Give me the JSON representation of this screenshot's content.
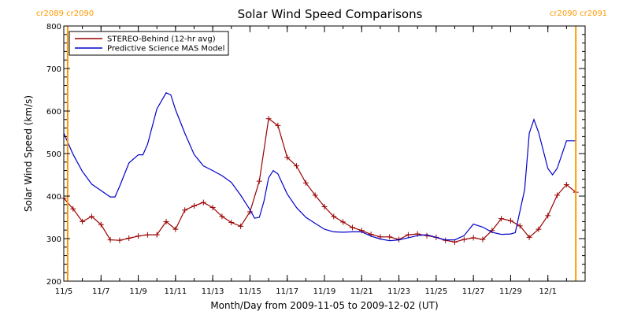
{
  "chart_data": {
    "type": "line",
    "title": "Solar Wind Speed Comparisons",
    "xlabel": "Month/Day from 2009-11-05 to 2009-12-02 (UT)",
    "ylabel": "Solar Wind Speed (km/s)",
    "xlim": [
      "2009-11-05",
      "2009-12-03"
    ],
    "ylim": [
      200,
      800
    ],
    "x_ticks": [
      {
        "date": "2009-11-05",
        "label": "11/5"
      },
      {
        "date": "2009-11-07",
        "label": "11/7"
      },
      {
        "date": "2009-11-09",
        "label": "11/9"
      },
      {
        "date": "2009-11-11",
        "label": "11/11"
      },
      {
        "date": "2009-11-13",
        "label": "11/13"
      },
      {
        "date": "2009-11-15",
        "label": "11/15"
      },
      {
        "date": "2009-11-17",
        "label": "11/17"
      },
      {
        "date": "2009-11-19",
        "label": "11/19"
      },
      {
        "date": "2009-11-21",
        "label": "11/21"
      },
      {
        "date": "2009-11-23",
        "label": "11/23"
      },
      {
        "date": "2009-11-25",
        "label": "11/25"
      },
      {
        "date": "2009-11-27",
        "label": "11/27"
      },
      {
        "date": "2009-11-29",
        "label": "11/29"
      },
      {
        "date": "2009-12-01",
        "label": "12/1"
      }
    ],
    "y_ticks": [
      200,
      300,
      400,
      500,
      600,
      700,
      800
    ],
    "carrington_markers": [
      {
        "label": "cr2089 cr2090",
        "date": "2009-11-05 05:00",
        "side": "left"
      },
      {
        "label": "cr2090 cr2091",
        "date": "2009-12-02 12:00",
        "side": "right"
      }
    ],
    "marker_color": "#ff9900",
    "legend": "top-left",
    "series": [
      {
        "name": "STEREO-Behind (12-hr avg)",
        "color": "#990000",
        "marker": "plus",
        "points": [
          [
            "2009-11-05 00:00",
            395
          ],
          [
            "2009-11-05 12:00",
            370
          ],
          [
            "2009-11-06 00:00",
            340
          ],
          [
            "2009-11-06 12:00",
            352
          ],
          [
            "2009-11-07 00:00",
            333
          ],
          [
            "2009-11-07 12:00",
            297
          ],
          [
            "2009-11-08 00:00",
            296
          ],
          [
            "2009-11-08 12:00",
            301
          ],
          [
            "2009-11-09 00:00",
            306
          ],
          [
            "2009-11-09 12:00",
            309
          ],
          [
            "2009-11-10 00:00",
            309
          ],
          [
            "2009-11-10 12:00",
            340
          ],
          [
            "2009-11-11 00:00",
            322
          ],
          [
            "2009-11-11 12:00",
            367
          ],
          [
            "2009-11-12 00:00",
            377
          ],
          [
            "2009-11-12 12:00",
            385
          ],
          [
            "2009-11-13 00:00",
            373
          ],
          [
            "2009-11-13 12:00",
            352
          ],
          [
            "2009-11-14 00:00",
            338
          ],
          [
            "2009-11-14 12:00",
            329
          ],
          [
            "2009-11-15 00:00",
            363
          ],
          [
            "2009-11-15 12:00",
            435
          ],
          [
            "2009-11-16 00:00",
            582
          ],
          [
            "2009-11-16 12:00",
            566
          ],
          [
            "2009-11-17 00:00",
            491
          ],
          [
            "2009-11-17 12:00",
            471
          ],
          [
            "2009-11-18 00:00",
            431
          ],
          [
            "2009-11-18 12:00",
            402
          ],
          [
            "2009-11-19 00:00",
            375
          ],
          [
            "2009-11-19 12:00",
            352
          ],
          [
            "2009-11-20 00:00",
            339
          ],
          [
            "2009-11-20 12:00",
            326
          ],
          [
            "2009-11-21 00:00",
            319
          ],
          [
            "2009-11-21 12:00",
            310
          ],
          [
            "2009-11-22 00:00",
            304
          ],
          [
            "2009-11-22 12:00",
            304
          ],
          [
            "2009-11-23 00:00",
            298
          ],
          [
            "2009-11-23 12:00",
            309
          ],
          [
            "2009-11-24 00:00",
            311
          ],
          [
            "2009-11-24 12:00",
            307
          ],
          [
            "2009-11-25 00:00",
            303
          ],
          [
            "2009-11-25 12:00",
            296
          ],
          [
            "2009-11-26 00:00",
            292
          ],
          [
            "2009-11-26 12:00",
            298
          ],
          [
            "2009-11-27 00:00",
            302
          ],
          [
            "2009-11-27 12:00",
            298
          ],
          [
            "2009-11-28 00:00",
            319
          ],
          [
            "2009-11-28 12:00",
            347
          ],
          [
            "2009-11-29 00:00",
            342
          ],
          [
            "2009-11-29 12:00",
            330
          ],
          [
            "2009-11-30 00:00",
            303
          ],
          [
            "2009-11-30 12:00",
            322
          ],
          [
            "2009-12-01 00:00",
            354
          ],
          [
            "2009-12-01 12:00",
            402
          ],
          [
            "2009-12-02 00:00",
            427
          ],
          [
            "2009-12-02 12:00",
            409
          ]
        ]
      },
      {
        "name": "Predictive Science MAS Model",
        "color": "#0000cc",
        "marker": "none",
        "points": [
          [
            "2009-11-05 00:00",
            548
          ],
          [
            "2009-11-05 12:00",
            498
          ],
          [
            "2009-11-06 00:00",
            458
          ],
          [
            "2009-11-06 12:00",
            428
          ],
          [
            "2009-11-07 00:00",
            413
          ],
          [
            "2009-11-07 12:00",
            398
          ],
          [
            "2009-11-07 18:00",
            398
          ],
          [
            "2009-11-08 00:00",
            423
          ],
          [
            "2009-11-08 12:00",
            478
          ],
          [
            "2009-11-09 00:00",
            497
          ],
          [
            "2009-11-09 06:00",
            497
          ],
          [
            "2009-11-09 12:00",
            522
          ],
          [
            "2009-11-10 00:00",
            605
          ],
          [
            "2009-11-10 12:00",
            643
          ],
          [
            "2009-11-10 18:00",
            638
          ],
          [
            "2009-11-11 00:00",
            603
          ],
          [
            "2009-11-11 12:00",
            548
          ],
          [
            "2009-11-12 00:00",
            498
          ],
          [
            "2009-11-12 12:00",
            471
          ],
          [
            "2009-11-13 00:00",
            460
          ],
          [
            "2009-11-13 12:00",
            448
          ],
          [
            "2009-11-14 00:00",
            432
          ],
          [
            "2009-11-14 12:00",
            402
          ],
          [
            "2009-11-15 00:00",
            368
          ],
          [
            "2009-11-15 06:00",
            348
          ],
          [
            "2009-11-15 12:00",
            350
          ],
          [
            "2009-11-15 18:00",
            388
          ],
          [
            "2009-11-16 00:00",
            443
          ],
          [
            "2009-11-16 06:00",
            460
          ],
          [
            "2009-11-16 12:00",
            452
          ],
          [
            "2009-11-17 00:00",
            405
          ],
          [
            "2009-11-17 12:00",
            373
          ],
          [
            "2009-11-18 00:00",
            350
          ],
          [
            "2009-11-18 12:00",
            336
          ],
          [
            "2009-11-19 00:00",
            322
          ],
          [
            "2009-11-19 12:00",
            316
          ],
          [
            "2009-11-20 00:00",
            315
          ],
          [
            "2009-11-20 12:00",
            316
          ],
          [
            "2009-11-21 00:00",
            316
          ],
          [
            "2009-11-21 12:00",
            306
          ],
          [
            "2009-11-22 00:00",
            299
          ],
          [
            "2009-11-22 12:00",
            295
          ],
          [
            "2009-11-23 00:00",
            297
          ],
          [
            "2009-11-23 12:00",
            302
          ],
          [
            "2009-11-24 00:00",
            307
          ],
          [
            "2009-11-24 12:00",
            309
          ],
          [
            "2009-11-25 00:00",
            303
          ],
          [
            "2009-11-25 12:00",
            297
          ],
          [
            "2009-11-26 00:00",
            297
          ],
          [
            "2009-11-26 12:00",
            307
          ],
          [
            "2009-11-27 00:00",
            334
          ],
          [
            "2009-11-27 12:00",
            327
          ],
          [
            "2009-11-28 00:00",
            315
          ],
          [
            "2009-11-28 12:00",
            310
          ],
          [
            "2009-11-29 00:00",
            311
          ],
          [
            "2009-11-29 06:00",
            314
          ],
          [
            "2009-11-29 18:00",
            415
          ],
          [
            "2009-11-30 00:00",
            548
          ],
          [
            "2009-11-30 06:00",
            580
          ],
          [
            "2009-11-30 12:00",
            550
          ],
          [
            "2009-12-01 00:00",
            465
          ],
          [
            "2009-12-01 06:00",
            450
          ],
          [
            "2009-12-01 12:00",
            465
          ],
          [
            "2009-12-02 00:00",
            530
          ],
          [
            "2009-12-02 12:00",
            530
          ]
        ]
      }
    ]
  }
}
